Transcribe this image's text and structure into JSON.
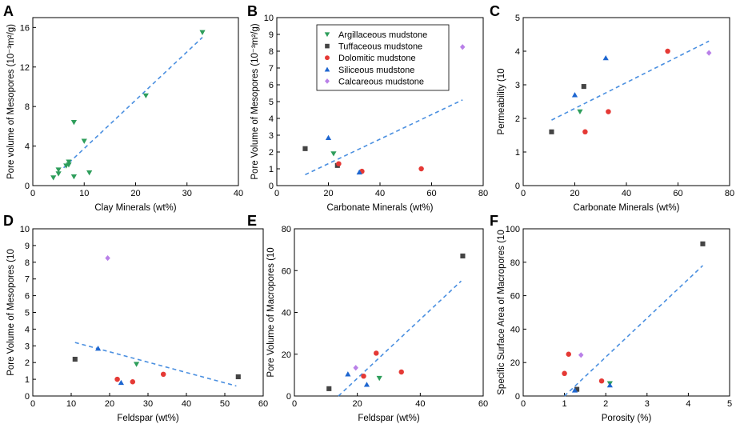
{
  "colors": {
    "argillaceous": "#2e9e5b",
    "tuffaceous": "#444444",
    "dolomitic": "#e53935",
    "siliceous": "#1e66d0",
    "calcareous": "#b980e8",
    "fit": "#4a8fe0"
  },
  "legend": {
    "entries": [
      {
        "key": "argillaceous",
        "label": "Argillaceous mudstone",
        "marker": "tri-down"
      },
      {
        "key": "tuffaceous",
        "label": "Tuffaceous mudstone",
        "marker": "square"
      },
      {
        "key": "dolomitic",
        "label": "Dolomitic mudstone",
        "marker": "circle"
      },
      {
        "key": "siliceous",
        "label": "Siliceous mudstone",
        "marker": "tri-up"
      },
      {
        "key": "calcareous",
        "label": "Calcareous mudstone",
        "marker": "diamond"
      }
    ]
  },
  "chart_data": [
    {
      "panel": "A",
      "type": "scatter",
      "xlabel": "Clay Minerals (wt%)",
      "ylabel": "Pore volume of Mesopores (10⁻³m²/g)",
      "xlim": [
        0,
        40
      ],
      "ylim": [
        0,
        17
      ],
      "xticks": [
        0,
        10,
        20,
        30,
        40
      ],
      "xtick_labels": [
        "0",
        "10",
        "20",
        "30",
        "40"
      ],
      "yticks": [
        0,
        4,
        8,
        12,
        16
      ],
      "ytick_labels": [
        "0",
        "4",
        "8",
        "12",
        "16"
      ],
      "fit": [
        [
          6,
          1.8
        ],
        [
          33,
          15
        ]
      ],
      "series": [
        {
          "key": "argillaceous",
          "points": [
            [
              4,
              0.8
            ],
            [
              5,
              1.2
            ],
            [
              5,
              1.6
            ],
            [
              6.5,
              2
            ],
            [
              7,
              2.4
            ],
            [
              7,
              2.1
            ],
            [
              8,
              0.9
            ],
            [
              8,
              6.4
            ],
            [
              10,
              4.5
            ],
            [
              11,
              1.3
            ],
            [
              22,
              9.1
            ],
            [
              33,
              15.5
            ]
          ]
        }
      ]
    },
    {
      "panel": "B",
      "type": "scatter",
      "xlabel": "Carbonate Minerals (wt%)",
      "ylabel": "Pore Volume of Mesopores  (10⁻³m²/g)",
      "xlim": [
        0,
        80
      ],
      "ylim": [
        0,
        10
      ],
      "xticks": [
        0,
        20,
        40,
        60,
        80
      ],
      "xtick_labels": [
        "0",
        "20",
        "40",
        "60",
        "80"
      ],
      "yticks": [
        0,
        1,
        2,
        3,
        4,
        5,
        6,
        7,
        8,
        9,
        10
      ],
      "ytick_labels": [
        "0",
        "1",
        "2",
        "3",
        "4",
        "5",
        "6",
        "7",
        "8",
        "9",
        "10"
      ],
      "fit": [
        [
          11,
          0.65
        ],
        [
          72,
          5.1
        ]
      ],
      "legend": true,
      "series": [
        {
          "key": "argillaceous",
          "points": [
            [
              22,
              1.9
            ]
          ]
        },
        {
          "key": "tuffaceous",
          "points": [
            [
              11,
              2.2
            ],
            [
              23.5,
              1.2
            ]
          ]
        },
        {
          "key": "dolomitic",
          "points": [
            [
              24,
              1.3
            ],
            [
              33,
              0.85
            ],
            [
              56,
              1
            ]
          ]
        },
        {
          "key": "siliceous",
          "points": [
            [
              20,
              2.85
            ],
            [
              32,
              0.8
            ]
          ]
        },
        {
          "key": "calcareous",
          "points": [
            [
              72,
              8.25
            ]
          ]
        }
      ]
    },
    {
      "panel": "C",
      "type": "scatter",
      "xlabel": "Carbonate Minerals (wt%)",
      "ylabel": "Permeability (10",
      "xlim": [
        0,
        80
      ],
      "ylim": [
        0,
        5
      ],
      "xticks": [
        0,
        20,
        40,
        60,
        80
      ],
      "xtick_labels": [
        "0",
        "20",
        "40",
        "60",
        "80"
      ],
      "yticks": [
        0,
        1,
        2,
        3,
        4,
        5
      ],
      "ytick_labels": [
        "0",
        "1",
        "2",
        "3",
        "4",
        "5"
      ],
      "fit": [
        [
          11,
          1.95
        ],
        [
          72,
          4.3
        ]
      ],
      "series": [
        {
          "key": "argillaceous",
          "points": [
            [
              22,
              2.2
            ]
          ]
        },
        {
          "key": "tuffaceous",
          "points": [
            [
              11,
              1.6
            ],
            [
              23.5,
              2.95
            ]
          ]
        },
        {
          "key": "dolomitic",
          "points": [
            [
              24,
              1.6
            ],
            [
              33,
              2.2
            ],
            [
              56,
              4
            ]
          ]
        },
        {
          "key": "siliceous",
          "points": [
            [
              20,
              2.7
            ],
            [
              32,
              3.8
            ]
          ]
        },
        {
          "key": "calcareous",
          "points": [
            [
              72,
              3.95
            ]
          ]
        }
      ]
    },
    {
      "panel": "D",
      "type": "scatter",
      "xlabel": "Feldspar (wt%)",
      "ylabel": "Pore Volume of Mesopores (10",
      "xlim": [
        0,
        60
      ],
      "ylim": [
        0,
        10
      ],
      "xticks": [
        0,
        10,
        20,
        30,
        40,
        50,
        60
      ],
      "xtick_labels": [
        "0",
        "10",
        "20",
        "30",
        "40",
        "50",
        "60"
      ],
      "yticks": [
        0,
        1,
        2,
        3,
        4,
        5,
        6,
        7,
        8,
        9,
        10
      ],
      "ytick_labels": [
        "0",
        "1",
        "2",
        "3",
        "4",
        "5",
        "6",
        "7",
        "8",
        "9",
        "10"
      ],
      "fit": [
        [
          11,
          3.2
        ],
        [
          53,
          0.6
        ]
      ],
      "series": [
        {
          "key": "argillaceous",
          "points": [
            [
              27,
              1.9
            ]
          ]
        },
        {
          "key": "tuffaceous",
          "points": [
            [
              11,
              2.2
            ],
            [
              53.5,
              1.15
            ]
          ]
        },
        {
          "key": "dolomitic",
          "points": [
            [
              22,
              1
            ],
            [
              26,
              0.85
            ],
            [
              34,
              1.3
            ]
          ]
        },
        {
          "key": "siliceous",
          "points": [
            [
              17,
              2.85
            ],
            [
              23,
              0.8
            ]
          ]
        },
        {
          "key": "calcareous",
          "points": [
            [
              19.5,
              8.25
            ]
          ]
        }
      ]
    },
    {
      "panel": "E",
      "type": "scatter",
      "xlabel": "Feldspar (wt%)",
      "ylabel": "Pore Volume of Macropores (10",
      "xlim": [
        0,
        60
      ],
      "ylim": [
        0,
        80
      ],
      "xticks": [
        0,
        20,
        40,
        60
      ],
      "xtick_labels": [
        "0",
        "20",
        "40",
        "60"
      ],
      "yticks": [
        0,
        20,
        40,
        60,
        80
      ],
      "ytick_labels": [
        "0",
        "20",
        "40",
        "60",
        "80"
      ],
      "fit": [
        [
          14,
          0
        ],
        [
          53,
          55
        ]
      ],
      "series": [
        {
          "key": "argillaceous",
          "points": [
            [
              27,
              8.5
            ]
          ]
        },
        {
          "key": "tuffaceous",
          "points": [
            [
              11,
              3.5
            ],
            [
              53.5,
              67
            ]
          ]
        },
        {
          "key": "dolomitic",
          "points": [
            [
              22,
              9.5
            ],
            [
              26,
              20.5
            ],
            [
              34,
              11.5
            ]
          ]
        },
        {
          "key": "siliceous",
          "points": [
            [
              17,
              10.5
            ],
            [
              23,
              5.5
            ]
          ]
        },
        {
          "key": "calcareous",
          "points": [
            [
              19.5,
              13.5
            ]
          ]
        }
      ]
    },
    {
      "panel": "F",
      "type": "scatter",
      "xlabel": "Porosity (%)",
      "ylabel": "Specific Surface Area of Macropores (10",
      "xlim": [
        0,
        5
      ],
      "ylim": [
        0,
        100
      ],
      "xticks": [
        0,
        1,
        2,
        3,
        4,
        5
      ],
      "xtick_labels": [
        "0",
        "1",
        "2",
        "3",
        "4",
        "5"
      ],
      "yticks": [
        0,
        20,
        40,
        60,
        80,
        100
      ],
      "ytick_labels": [
        "0",
        "20",
        "40",
        "60",
        "80",
        "100"
      ],
      "fit": [
        [
          1,
          0
        ],
        [
          4.35,
          78
        ]
      ],
      "series": [
        {
          "key": "argillaceous",
          "points": [
            [
              2.1,
              7.5
            ]
          ]
        },
        {
          "key": "tuffaceous",
          "points": [
            [
              1.3,
              4
            ],
            [
              4.35,
              91
            ]
          ]
        },
        {
          "key": "dolomitic",
          "points": [
            [
              1,
              13.5
            ],
            [
              1.1,
              25
            ],
            [
              1.9,
              9
            ]
          ]
        },
        {
          "key": "siliceous",
          "points": [
            [
              1.25,
              3.5
            ],
            [
              2.1,
              6.5
            ]
          ]
        },
        {
          "key": "calcareous",
          "points": [
            [
              1.4,
              24.5
            ]
          ]
        }
      ]
    }
  ]
}
